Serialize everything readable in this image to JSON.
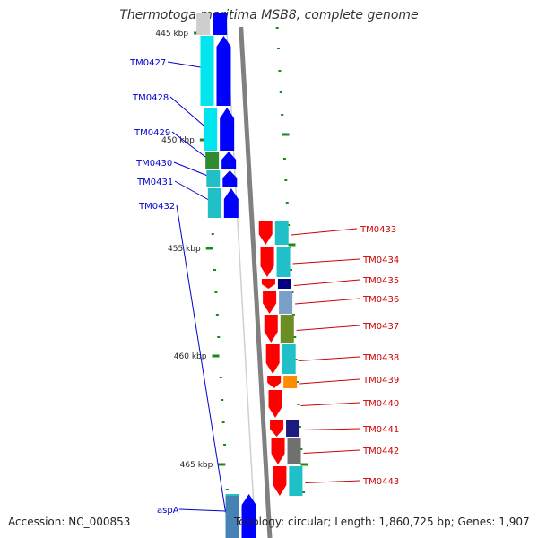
{
  "title": "Thermotoga maritima MSB8, complete genome",
  "accession": "Accession: NC_000853",
  "topology": "Topology: circular; Length: 1,860,725 bp; Genes: 1,907",
  "colors": {
    "backbone": "#808080",
    "backbone_light": "#cfcfcf",
    "tick": "#1a8a1a",
    "forward_gene": "#0000ff",
    "reverse_gene": "#ff0000",
    "forward_label": "#0000cc",
    "reverse_label": "#cc0000"
  },
  "ticks": [
    {
      "label": "445 kbp"
    },
    {
      "label": "450 kbp"
    },
    {
      "label": "455 kbp"
    },
    {
      "label": "460 kbp"
    },
    {
      "label": "465 kbp"
    }
  ],
  "forward_genes": [
    {
      "label": "TM0427",
      "cog_color": "#00e5ee"
    },
    {
      "label": "TM0428",
      "cog_color": "#00e5ee"
    },
    {
      "label": "TM0429",
      "cog_color": "#2e8b2e"
    },
    {
      "label": "TM0430",
      "cog_color": "#20c0c8"
    },
    {
      "label": "TM0431",
      "cog_color": "#20c0c8"
    },
    {
      "label": "TM0432",
      "cog_color": "#20c0c8"
    },
    {
      "label": "aspA",
      "cog_color": "#4682b4"
    }
  ],
  "reverse_genes": [
    {
      "label": "TM0433",
      "cog_color": "#20c0c8"
    },
    {
      "label": "TM0434",
      "cog_color": "#20c0c8"
    },
    {
      "label": "TM0435",
      "cog_color": "#000080"
    },
    {
      "label": "TM0436",
      "cog_color": "#7aa0c8"
    },
    {
      "label": "TM0437",
      "cog_color": "#6b8e23"
    },
    {
      "label": "TM0438",
      "cog_color": "#20c0c8"
    },
    {
      "label": "TM0439",
      "cog_color": "#ff8c00"
    },
    {
      "label": "TM0440",
      "cog_color": ""
    },
    {
      "label": "TM0441",
      "cog_color": "#1a1a80"
    },
    {
      "label": "TM0442",
      "cog_color": "#707070"
    },
    {
      "label": "TM0443",
      "cog_color": "#20c0c8"
    }
  ]
}
